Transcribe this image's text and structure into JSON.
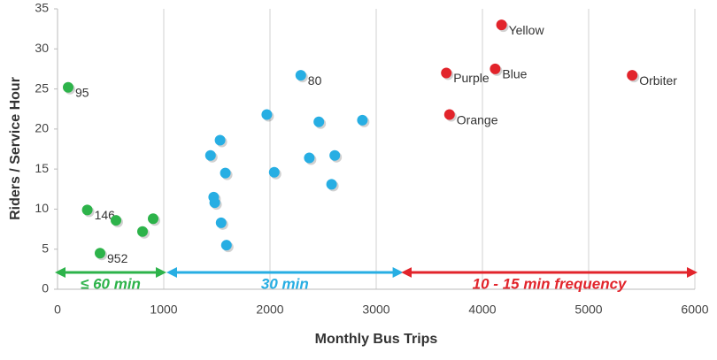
{
  "chart_data": {
    "type": "scatter",
    "x_label": "Monthly Bus Trips",
    "y_label": "Riders / Service Hour",
    "xlim": [
      0,
      6000
    ],
    "xticks": [
      0,
      1000,
      2000,
      3000,
      4000,
      5000,
      6000
    ],
    "ylim": [
      0,
      35
    ],
    "yticks": [
      0,
      5,
      10,
      15,
      20,
      25,
      30,
      35
    ],
    "grid": "x",
    "series": [
      {
        "color": "#2db34a",
        "x": [
          100,
          280,
          550,
          800,
          900,
          400
        ],
        "values": [
          25.2,
          9.9,
          8.6,
          7.2,
          8.8,
          4.5
        ],
        "labels": [
          "95",
          "146",
          null,
          null,
          null,
          "952"
        ]
      },
      {
        "color": "#27aee3",
        "x": [
          1440,
          1530,
          1580,
          1470,
          1480,
          1540,
          1590,
          1970,
          2040,
          2290,
          2370,
          2460,
          2580,
          2610,
          2870
        ],
        "values": [
          16.7,
          18.6,
          14.5,
          11.5,
          10.8,
          8.3,
          5.5,
          21.8,
          14.6,
          26.7,
          16.4,
          20.9,
          13.1,
          16.7,
          21.1
        ],
        "labels": [
          null,
          null,
          null,
          null,
          null,
          null,
          null,
          null,
          null,
          "80",
          null,
          null,
          null,
          null,
          null
        ]
      },
      {
        "color": "#e2242b",
        "x": [
          3660,
          3690,
          4120,
          4180,
          5410
        ],
        "values": [
          27,
          21.8,
          27.5,
          33,
          26.7
        ],
        "labels": [
          "Purple",
          "Orange",
          "Blue",
          "Yellow",
          "Orbiter"
        ]
      }
    ],
    "ranges": [
      {
        "label": "≤ 60 min",
        "color": "#2db34a",
        "x": [
          0,
          1000
        ]
      },
      {
        "label": "30 min",
        "color": "#27aee3",
        "x": [
          1050,
          3230
        ]
      },
      {
        "label": "10 - 15 min frequency",
        "color": "#e2242b",
        "x": [
          3260,
          6000
        ]
      }
    ]
  }
}
